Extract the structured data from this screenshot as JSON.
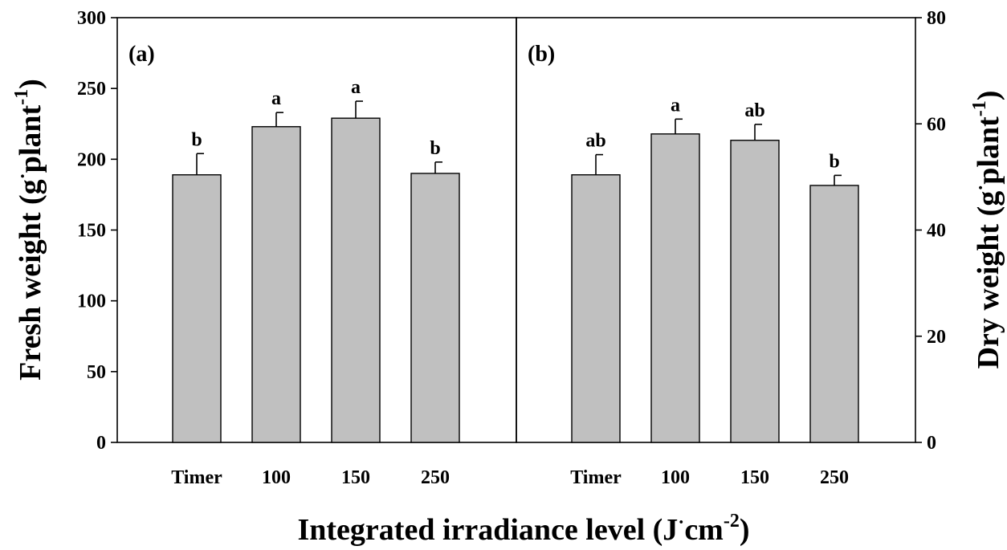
{
  "chart_data": [
    {
      "type": "bar",
      "panel_label": "(a)",
      "categories": [
        "Timer",
        "100",
        "150",
        "250"
      ],
      "values": [
        189,
        223,
        229,
        190
      ],
      "errors": [
        15,
        10,
        12,
        8
      ],
      "significance": [
        "b",
        "a",
        "a",
        "b"
      ],
      "ylim": [
        0,
        300
      ],
      "yticks": [
        0,
        50,
        100,
        150,
        200,
        250,
        300
      ],
      "ylabel": "Fresh weight (g",
      "ylabel_dot": "·",
      "ylabel_mid": "plant",
      "ylabel_sup": "-1",
      "ylabel_close": ")",
      "bar_color": "#c0c0c0",
      "axis_side": "left"
    },
    {
      "type": "bar",
      "panel_label": "(b)",
      "categories": [
        "Timer",
        "100",
        "150",
        "250"
      ],
      "values": [
        50.4,
        58.1,
        56.9,
        48.4
      ],
      "errors": [
        3.8,
        2.8,
        3.0,
        1.9
      ],
      "significance": [
        "ab",
        "a",
        "ab",
        "b"
      ],
      "ylim": [
        0,
        80
      ],
      "yticks": [
        0,
        20,
        40,
        60,
        80
      ],
      "ylabel": "Dry weight (g",
      "ylabel_dot": "·",
      "ylabel_mid": "plant",
      "ylabel_sup": "-1",
      "ylabel_close": ")",
      "bar_color": "#c0c0c0",
      "axis_side": "right"
    }
  ],
  "xlabel": {
    "main": "Integrated irradiance level (J",
    "dot": "·",
    "mid": "cm",
    "sup": "-2",
    "close": ")"
  }
}
